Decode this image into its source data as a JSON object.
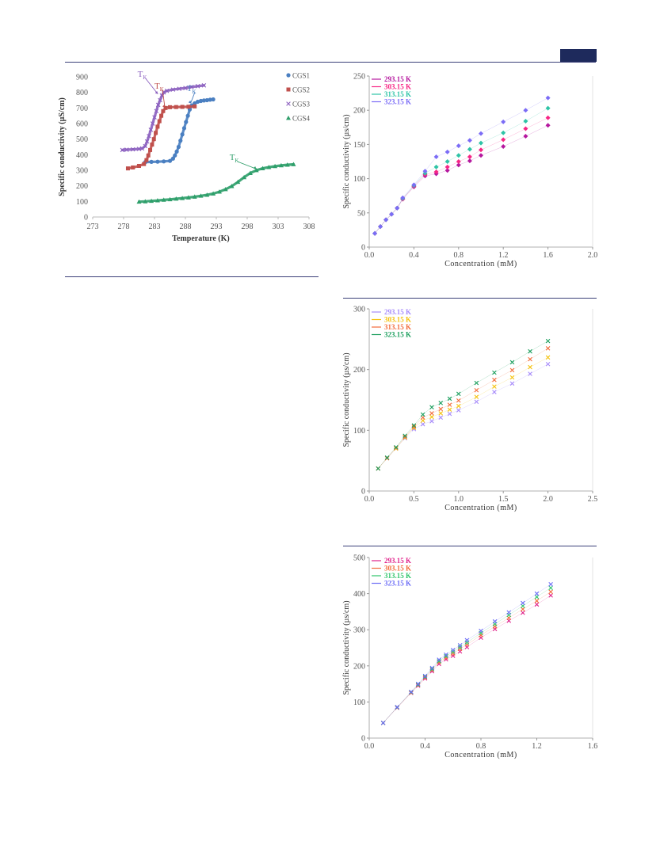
{
  "page": {
    "accent": "#1e2a5c",
    "rule_color": "#3b3f78"
  },
  "chart_data": [
    {
      "id": "tk",
      "type": "scatter",
      "title": "",
      "xlabel": "Temperature (K)",
      "ylabel": "Specific conductivity (µS/cm)",
      "xlim": [
        273,
        308
      ],
      "ylim": [
        0,
        900
      ],
      "xticks": [
        "273",
        "278",
        "283",
        "288",
        "293",
        "298",
        "303",
        "308"
      ],
      "yticks": [
        "0",
        "100",
        "200",
        "300",
        "400",
        "500",
        "600",
        "700",
        "800",
        "900"
      ],
      "legend_position": "top-right",
      "grid": false,
      "series": [
        {
          "name": "CGS1",
          "marker": "circle",
          "color": "#4a7fc1",
          "points": [
            [
              281.5,
              352
            ],
            [
              282.5,
              354
            ],
            [
              283.5,
              355
            ],
            [
              284.5,
              357
            ],
            [
              285.5,
              360
            ],
            [
              286,
              375
            ],
            [
              286.3,
              395
            ],
            [
              286.6,
              420
            ],
            [
              286.9,
              450
            ],
            [
              287.2,
              490
            ],
            [
              287.5,
              530
            ],
            [
              287.8,
              570
            ],
            [
              288.1,
              610
            ],
            [
              288.4,
              650
            ],
            [
              288.7,
              690
            ],
            [
              289,
              715
            ],
            [
              289.5,
              730
            ],
            [
              290,
              740
            ],
            [
              290.5,
              745
            ],
            [
              291,
              748
            ],
            [
              291.5,
              750
            ],
            [
              292,
              753
            ],
            [
              292.5,
              755
            ]
          ]
        },
        {
          "name": "CGS2",
          "marker": "square",
          "color": "#c0504d",
          "points": [
            [
              278.7,
              312
            ],
            [
              279.5,
              318
            ],
            [
              280.5,
              328
            ],
            [
              281.3,
              340
            ],
            [
              281.7,
              365
            ],
            [
              282,
              395
            ],
            [
              282.3,
              430
            ],
            [
              282.6,
              465
            ],
            [
              282.9,
              500
            ],
            [
              283.2,
              540
            ],
            [
              283.5,
              580
            ],
            [
              283.8,
              615
            ],
            [
              284.1,
              650
            ],
            [
              284.4,
              680
            ],
            [
              284.8,
              700
            ],
            [
              285.5,
              705
            ],
            [
              286.5,
              706
            ],
            [
              287.5,
              707
            ],
            [
              288.5,
              708
            ],
            [
              289.5,
              710
            ]
          ]
        },
        {
          "name": "CGS3",
          "marker": "x",
          "color": "#8b5fbf",
          "points": [
            [
              277.8,
              430
            ],
            [
              278.5,
              432
            ],
            [
              279.5,
              434
            ],
            [
              280.5,
              437
            ],
            [
              281,
              440
            ],
            [
              281.5,
              455
            ],
            [
              281.8,
              485
            ],
            [
              282.1,
              520
            ],
            [
              282.4,
              560
            ],
            [
              282.7,
              600
            ],
            [
              283,
              640
            ],
            [
              283.3,
              680
            ],
            [
              283.6,
              720
            ],
            [
              283.9,
              750
            ],
            [
              284.2,
              780
            ],
            [
              284.5,
              800
            ],
            [
              285,
              810
            ],
            [
              286,
              818
            ],
            [
              287,
              823
            ],
            [
              288,
              828
            ],
            [
              289,
              835
            ],
            [
              290,
              840
            ],
            [
              291,
              845
            ]
          ]
        },
        {
          "name": "CGS4",
          "marker": "triangle",
          "color": "#2e9e6a",
          "points": [
            [
              280.5,
              98
            ],
            [
              281.5,
              100
            ],
            [
              282.5,
              103
            ],
            [
              283.5,
              106
            ],
            [
              284.5,
              110
            ],
            [
              285.5,
              113
            ],
            [
              286.5,
              117
            ],
            [
              287.5,
              121
            ],
            [
              288.5,
              125
            ],
            [
              289.5,
              130
            ],
            [
              290.5,
              136
            ],
            [
              291.5,
              142
            ],
            [
              292.5,
              150
            ],
            [
              293.5,
              162
            ],
            [
              294.5,
              178
            ],
            [
              295.5,
              198
            ],
            [
              296.5,
              225
            ],
            [
              297.5,
              255
            ],
            [
              298.5,
              282
            ],
            [
              299.5,
              300
            ],
            [
              300.5,
              312
            ],
            [
              301.5,
              320
            ],
            [
              302.5,
              326
            ],
            [
              303.5,
              331
            ],
            [
              304.5,
              335
            ],
            [
              305.5,
              338
            ]
          ]
        }
      ],
      "annotations": [
        {
          "text": "T",
          "sub": "K",
          "color": "#8b5fbf",
          "x": 283.6,
          "y": 788
        },
        {
          "text": "T",
          "sub": "K",
          "color": "#c0504d",
          "x": 284.8,
          "y": 702
        },
        {
          "text": "T",
          "sub": "K",
          "color": "#4a7fc1",
          "x": 289.0,
          "y": 728
        },
        {
          "text": "T",
          "sub": "K",
          "color": "#2e9e6a",
          "x": 299.5,
          "y": 305
        }
      ]
    },
    {
      "id": "c1",
      "type": "scatter",
      "title": "",
      "xlabel": "Concentration (mM)",
      "ylabel": "Specific conductivity (µs/cm)",
      "xlim": [
        0,
        2.0
      ],
      "ylim": [
        0,
        250
      ],
      "xticks": [
        "0.0",
        "0.4",
        "0.8",
        "1.2",
        "1.6",
        "2.0"
      ],
      "yticks": [
        "0",
        "50",
        "100",
        "150",
        "200",
        "250"
      ],
      "legend_position": "top-left",
      "grid": false,
      "x": [
        0.05,
        0.1,
        0.15,
        0.2,
        0.25,
        0.3,
        0.4,
        0.5,
        0.6,
        0.7,
        0.8,
        0.9,
        1.0,
        1.2,
        1.4,
        1.6
      ],
      "series": [
        {
          "name": "293.15 K",
          "color": "#b5179e",
          "values": [
            20,
            30,
            40,
            48,
            57,
            70,
            88,
            104,
            107,
            112,
            120,
            126,
            134,
            147,
            162,
            178
          ]
        },
        {
          "name": "303.15 K",
          "color": "#f72585",
          "values": [
            20,
            30,
            40,
            48,
            57,
            70,
            89,
            106,
            110,
            117,
            125,
            132,
            142,
            157,
            173,
            189
          ]
        },
        {
          "name": "313.15 K",
          "color": "#2ec4a6",
          "values": [
            20,
            30,
            40,
            48,
            57,
            71,
            90,
            108,
            117,
            125,
            134,
            143,
            152,
            167,
            184,
            203
          ]
        },
        {
          "name": "323.15 K",
          "color": "#7b6cf6",
          "values": [
            20,
            30,
            40,
            48,
            57,
            72,
            91,
            111,
            132,
            139,
            148,
            156,
            166,
            183,
            200,
            218
          ]
        }
      ]
    },
    {
      "id": "c2",
      "type": "scatter",
      "title": "",
      "xlabel": "Concentration (mM)",
      "ylabel": "Specific conductivity (µs/cm)",
      "xlim": [
        0,
        2.5
      ],
      "ylim": [
        0,
        300
      ],
      "xticks": [
        "0.0",
        "0.5",
        "1.0",
        "1.5",
        "2.0",
        "2.5"
      ],
      "yticks": [
        "0",
        "100",
        "200",
        "300"
      ],
      "legend_position": "top-left",
      "grid": false,
      "x": [
        0.1,
        0.2,
        0.3,
        0.4,
        0.5,
        0.6,
        0.7,
        0.8,
        0.9,
        1.0,
        1.2,
        1.4,
        1.6,
        1.8,
        2.0
      ],
      "series": [
        {
          "name": "293.15 K",
          "color": "#a78bfa",
          "values": [
            37,
            54,
            70,
            87,
            102,
            110,
            115,
            121,
            127,
            133,
            147,
            163,
            177,
            193,
            209
          ]
        },
        {
          "name": "303.15 K",
          "color": "#f4c20d",
          "values": [
            37,
            54,
            70,
            88,
            104,
            116,
            122,
            128,
            134,
            140,
            155,
            172,
            187,
            204,
            220
          ]
        },
        {
          "name": "313.15 K",
          "color": "#f26b3a",
          "values": [
            37,
            54,
            71,
            89,
            106,
            121,
            128,
            135,
            142,
            149,
            166,
            183,
            199,
            217,
            235
          ]
        },
        {
          "name": "323.15 K",
          "color": "#1a9e5c",
          "values": [
            37,
            55,
            72,
            91,
            108,
            126,
            138,
            145,
            152,
            160,
            178,
            195,
            212,
            230,
            247
          ]
        }
      ]
    },
    {
      "id": "c3",
      "type": "scatter",
      "title": "",
      "xlabel": "Concentration (mM)",
      "ylabel": "Specific conductivity (µs/cm)",
      "xlim": [
        0,
        1.6
      ],
      "ylim": [
        0,
        500
      ],
      "xticks": [
        "0.0",
        "0.4",
        "0.8",
        "1.2",
        "1.6"
      ],
      "yticks": [
        "0",
        "100",
        "200",
        "300",
        "400",
        "500"
      ],
      "legend_position": "top-left",
      "grid": false,
      "x": [
        0.1,
        0.2,
        0.3,
        0.35,
        0.4,
        0.45,
        0.5,
        0.55,
        0.6,
        0.65,
        0.7,
        0.8,
        0.9,
        1.0,
        1.1,
        1.2,
        1.3
      ],
      "series": [
        {
          "name": "293.15 K",
          "color": "#e0218a",
          "values": [
            42,
            84,
            125,
            145,
            165,
            185,
            205,
            218,
            228,
            240,
            252,
            278,
            302,
            325,
            347,
            370,
            395
          ]
        },
        {
          "name": "303.15 K",
          "color": "#f26b3a",
          "values": [
            42,
            85,
            126,
            147,
            168,
            189,
            210,
            223,
            234,
            247,
            259,
            285,
            309,
            333,
            357,
            380,
            405
          ]
        },
        {
          "name": "313.15 K",
          "color": "#2ec46a",
          "values": [
            42,
            85,
            127,
            148,
            170,
            191,
            213,
            227,
            239,
            252,
            265,
            291,
            316,
            341,
            366,
            391,
            416
          ]
        },
        {
          "name": "323.15 K",
          "color": "#6b6cf6",
          "values": [
            42,
            86,
            128,
            150,
            172,
            194,
            217,
            231,
            244,
            257,
            271,
            297,
            323,
            348,
            374,
            400,
            426
          ]
        }
      ]
    }
  ]
}
